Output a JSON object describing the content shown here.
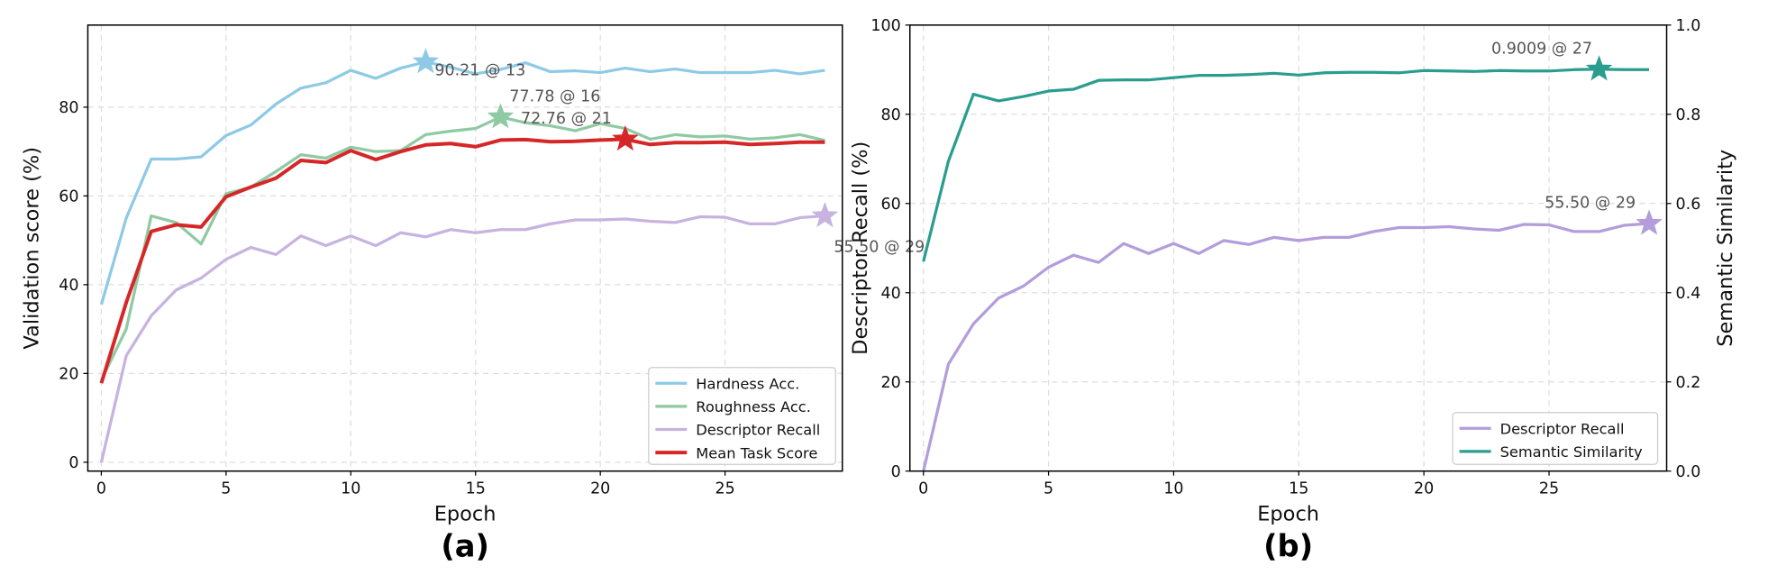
{
  "chart_data": [
    {
      "type": "line",
      "panel_label": "(a)",
      "xlabel": "Epoch",
      "ylabel": "Validation score (%)",
      "xlim": [
        -0.54,
        29.7
      ],
      "ylim": [
        -2,
        98.5
      ],
      "xticks": [
        0,
        5,
        10,
        15,
        20,
        25
      ],
      "yticks": [
        0,
        20,
        40,
        60,
        80
      ],
      "grid": true,
      "legend_position": "lower-right",
      "x": [
        0,
        1,
        2,
        3,
        4,
        5,
        6,
        7,
        8,
        9,
        10,
        11,
        12,
        13,
        14,
        15,
        16,
        17,
        18,
        19,
        20,
        21,
        22,
        23,
        24,
        25,
        26,
        27,
        28,
        29
      ],
      "series": [
        {
          "name": "Hardness Acc.",
          "color": "#8ecae6",
          "width": 2.6,
          "values": [
            35.5,
            55,
            68.3,
            68.3,
            68.8,
            73.6,
            76,
            80.7,
            84.3,
            85.5,
            88.3,
            86.5,
            88.8,
            90.21,
            89,
            87.5,
            88.5,
            90,
            88,
            88.2,
            87.8,
            88.8,
            88,
            88.6,
            87.8,
            87.8,
            87.8,
            88.3,
            87.5,
            88.3
          ],
          "best": {
            "epoch": 13,
            "value": 90.21,
            "label": "90.21 @ 13"
          }
        },
        {
          "name": "Roughness Acc.",
          "color": "#8fcaa3",
          "width": 2.6,
          "values": [
            18.5,
            30,
            55.5,
            54,
            49.2,
            60.5,
            62,
            65.5,
            69.3,
            68.5,
            71,
            70,
            70.2,
            73.8,
            74.6,
            75.2,
            77.78,
            76.5,
            75.8,
            74.7,
            76.3,
            75.2,
            72.8,
            73.8,
            73.3,
            73.5,
            72.8,
            73.1,
            73.8,
            72.5
          ],
          "best": {
            "epoch": 16,
            "value": 77.78,
            "label": "77.78 @ 16"
          }
        },
        {
          "name": "Descriptor Recall",
          "color": "#c7b3e0",
          "width": 2.6,
          "values": [
            0,
            24,
            33,
            38.8,
            41.5,
            45.7,
            48.4,
            46.8,
            51,
            48.8,
            51,
            48.8,
            51.7,
            50.8,
            52.4,
            51.7,
            52.4,
            52.4,
            53.7,
            54.6,
            54.6,
            54.8,
            54.3,
            54,
            55.3,
            55.2,
            53.7,
            53.7,
            55.1,
            55.5
          ],
          "best": {
            "epoch": 29,
            "value": 55.5,
            "label": "55.50 @ 29"
          }
        },
        {
          "name": "Mean Task Score",
          "color": "#d62728",
          "width": 3.2,
          "values": [
            17.8,
            36,
            52,
            53.5,
            53,
            59.8,
            62,
            64,
            68,
            67.5,
            70.2,
            68.2,
            70,
            71.5,
            71.8,
            71.1,
            72.6,
            72.7,
            72.2,
            72.3,
            72.6,
            72.76,
            71.6,
            72,
            72,
            72.1,
            71.6,
            71.8,
            72.1,
            72.1
          ],
          "best": {
            "epoch": 21,
            "value": 72.76,
            "label": "72.76 @ 21"
          }
        }
      ]
    },
    {
      "type": "line",
      "panel_label": "(b)",
      "xlabel": "Epoch",
      "ylabel": "Descriptor Recall (%)",
      "ylabel_right": "Semantic Similarity",
      "xlim": [
        -0.54,
        29.7
      ],
      "ylim": [
        0,
        100
      ],
      "ylim_right": [
        0,
        1
      ],
      "xticks": [
        0,
        5,
        10,
        15,
        20,
        25
      ],
      "yticks": [
        0,
        20,
        40,
        60,
        80,
        100
      ],
      "yticks_right": [
        "0.0",
        "0.2",
        "0.4",
        "0.6",
        "0.8",
        "1.0"
      ],
      "grid": true,
      "legend_position": "lower-right",
      "x": [
        0,
        1,
        2,
        3,
        4,
        5,
        6,
        7,
        8,
        9,
        10,
        11,
        12,
        13,
        14,
        15,
        16,
        17,
        18,
        19,
        20,
        21,
        22,
        23,
        24,
        25,
        26,
        27,
        28,
        29
      ],
      "series": [
        {
          "name": "Descriptor Recall",
          "color": "#b39ddb",
          "axis": "left",
          "width": 2.6,
          "values": [
            0,
            24,
            33,
            38.8,
            41.5,
            45.7,
            48.4,
            46.8,
            51,
            48.8,
            51,
            48.8,
            51.7,
            50.8,
            52.4,
            51.7,
            52.4,
            52.4,
            53.7,
            54.6,
            54.6,
            54.8,
            54.3,
            54,
            55.3,
            55.2,
            53.7,
            53.7,
            55.1,
            55.5
          ],
          "best": {
            "epoch": 29,
            "value": 55.5,
            "label": "55.50 @ 29"
          }
        },
        {
          "name": "Semantic Similarity",
          "color": "#2a9d8f",
          "axis": "right",
          "width": 2.6,
          "values": [
            0.47,
            0.695,
            0.845,
            0.83,
            0.84,
            0.852,
            0.856,
            0.876,
            0.877,
            0.877,
            0.882,
            0.887,
            0.887,
            0.889,
            0.892,
            0.888,
            0.893,
            0.894,
            0.894,
            0.893,
            0.898,
            0.897,
            0.896,
            0.898,
            0.897,
            0.897,
            0.9,
            0.9009,
            0.9,
            0.9
          ],
          "best": {
            "epoch": 27,
            "value": 0.9009,
            "label": "0.9009 @ 27"
          }
        }
      ]
    }
  ]
}
